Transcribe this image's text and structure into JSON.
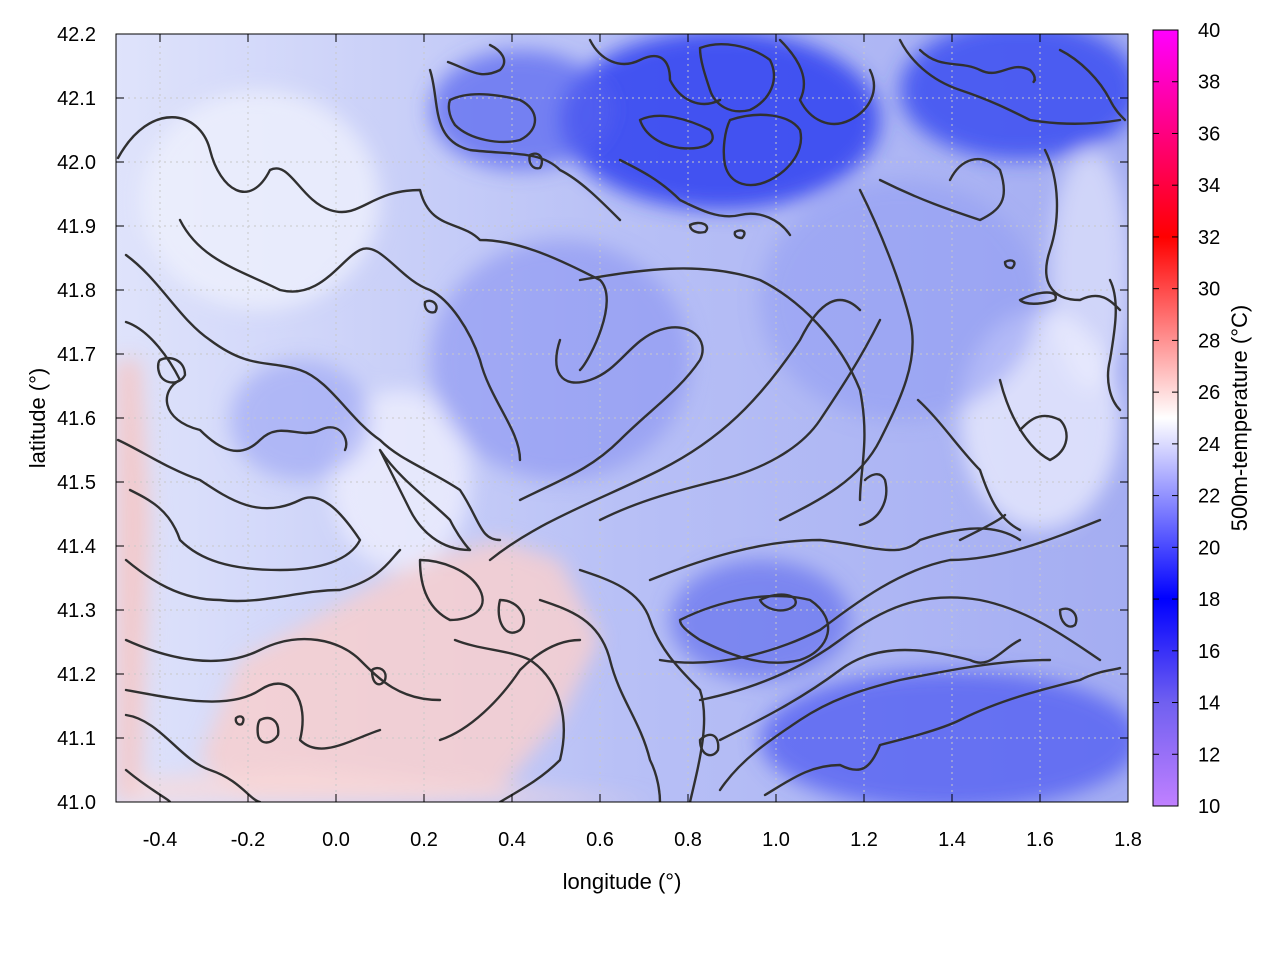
{
  "chart_data": {
    "type": "heatmap",
    "title": "",
    "xlabel": "longitude (°)",
    "ylabel": "latitude (°)",
    "colorbar_label": "500m-temperature (°C)",
    "xlim": [
      -0.5,
      1.8
    ],
    "ylim": [
      41.0,
      42.2
    ],
    "clim": [
      10,
      40
    ],
    "x_ticks": [
      -0.4,
      -0.2,
      0.0,
      0.2,
      0.4,
      0.6,
      0.8,
      1.0,
      1.2,
      1.4,
      1.6,
      1.8
    ],
    "x_tick_labels": [
      "-0.4",
      "-0.2",
      "0.0",
      "0.2",
      "0.4",
      "0.6",
      "0.8",
      "1.0",
      "1.2",
      "1.4",
      "1.6",
      "1.8"
    ],
    "y_ticks": [
      41.0,
      41.1,
      41.2,
      41.3,
      41.4,
      41.5,
      41.6,
      41.7,
      41.8,
      41.9,
      42.0,
      42.1,
      42.2
    ],
    "y_tick_labels": [
      "41.0",
      "41.1",
      "41.2",
      "41.3",
      "41.4",
      "41.5",
      "41.6",
      "41.7",
      "41.8",
      "41.9",
      "42.0",
      "42.1",
      "42.2"
    ],
    "colorbar_ticks": [
      10,
      12,
      14,
      16,
      18,
      20,
      22,
      24,
      26,
      28,
      30,
      32,
      34,
      36,
      38,
      40
    ],
    "colorbar_tick_labels": [
      "10",
      "12",
      "14",
      "16",
      "18",
      "20",
      "22",
      "24",
      "26",
      "28",
      "30",
      "32",
      "34",
      "36",
      "38",
      "40"
    ],
    "colormap": [
      {
        "value": 10,
        "color": "#c080ff"
      },
      {
        "value": 14,
        "color": "#7060f0"
      },
      {
        "value": 18,
        "color": "#0000ff"
      },
      {
        "value": 25,
        "color": "#ffffff"
      },
      {
        "value": 32,
        "color": "#ff0000"
      },
      {
        "value": 40,
        "color": "#ff00ff"
      }
    ],
    "grid": true,
    "contours": "black topographic contour lines overlaid"
  }
}
